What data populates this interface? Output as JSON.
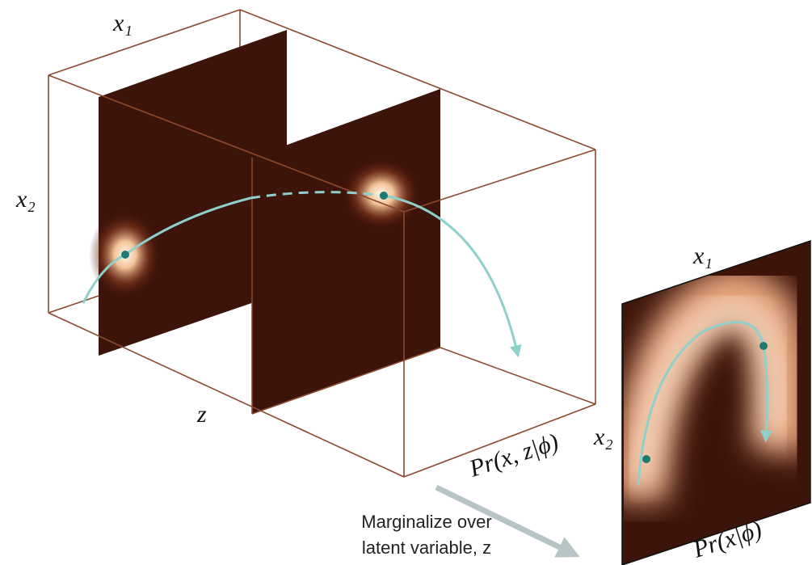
{
  "joint": {
    "x1_label": "x₁",
    "x2_label": "x₂",
    "z_label": "z",
    "title": "Pr(x, z|ϕ)"
  },
  "marginal": {
    "x1_label": "x₁",
    "x2_label": "x₂",
    "title": "Pr(x|ϕ)"
  },
  "annotation": {
    "lines": [
      "Marginalize over",
      "latent variable, z"
    ]
  }
}
